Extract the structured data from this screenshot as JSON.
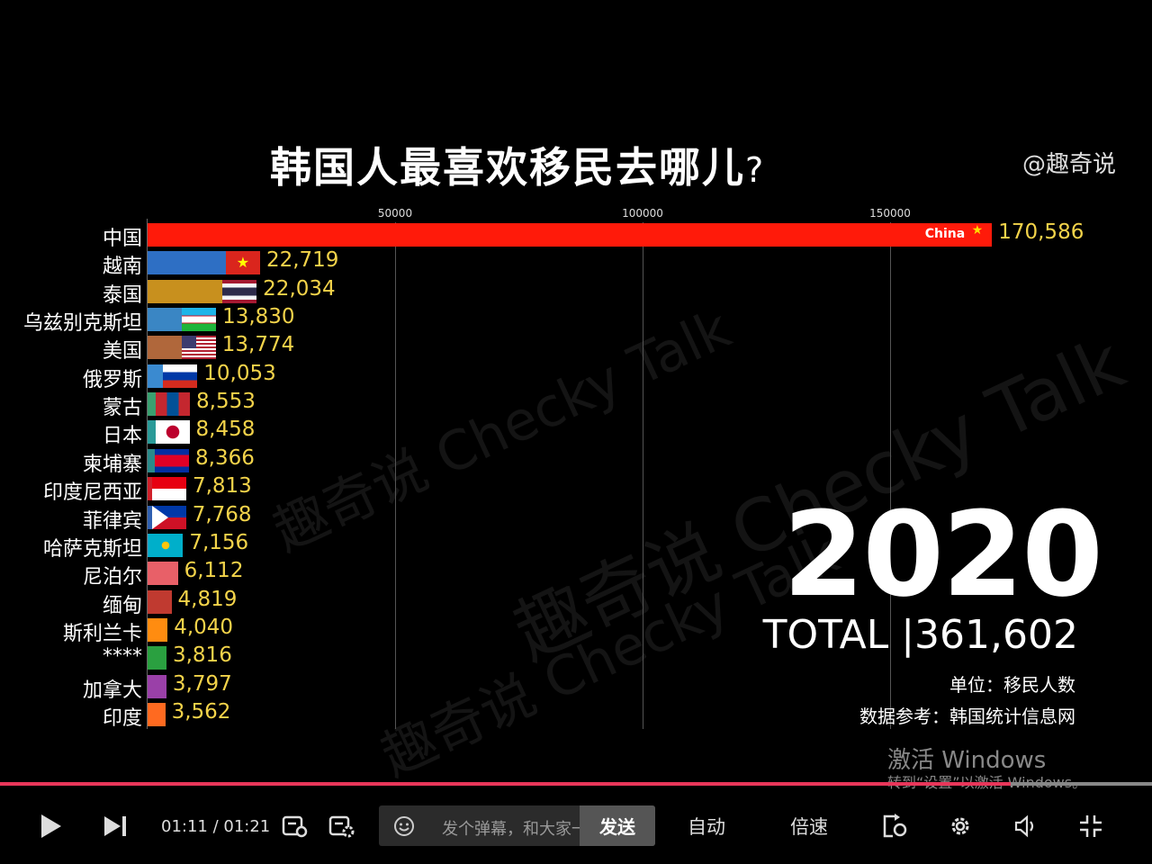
{
  "video": {
    "title": "韩国人最喜欢移民去哪儿",
    "title_mark": "?",
    "handle": "@趣奇说",
    "year": "2020",
    "total": "TOTAL |361,602",
    "unit": "单位：移民人数",
    "source": "数据参考：韩国统计信息网",
    "watermark": "趣奇说 Checky Talk",
    "china_inline": "China"
  },
  "chart_data": {
    "type": "bar",
    "orientation": "horizontal",
    "x_ticks": [
      50000,
      100000,
      150000
    ],
    "x_tick_labels": [
      "50000",
      "100000",
      "150000"
    ],
    "grid": true,
    "categories": [
      "中国",
      "越南",
      "泰国",
      "乌兹别克斯坦",
      "美国",
      "俄罗斯",
      "蒙古",
      "日本",
      "柬埔寨",
      "印度尼西亚",
      "菲律宾",
      "哈萨克斯坦",
      "尼泊尔",
      "缅甸",
      "斯利兰卡",
      "****",
      "加拿大",
      "印度"
    ],
    "values": [
      170586,
      22719,
      22034,
      13830,
      13774,
      10053,
      8553,
      8458,
      8366,
      7813,
      7768,
      7156,
      6112,
      4819,
      4040,
      3816,
      3797,
      3562
    ],
    "value_labels": [
      "170,586",
      "22,719",
      "22,034",
      "13,830",
      "13,774",
      "10,053",
      "8,553",
      "8,458",
      "8,366",
      "7,813",
      "7,768",
      "7,156",
      "6,112",
      "4,819",
      "4,040",
      "3,816",
      "3,797",
      "3,562"
    ],
    "colors": [
      "#ff1a0a",
      "#2e6fc4",
      "#c8901e",
      "#3a86c4",
      "#b0673b",
      "#3a8ad0",
      "#3aa070",
      "#2a9a98",
      "#2a8a8a",
      "#d0202a",
      "#3060b0",
      "#2aa0c8",
      "#e86068",
      "#c03a30",
      "#ff8c10",
      "#2aa040",
      "#9a40a8",
      "#ff6a20"
    ],
    "flags": [
      "china",
      "vietnam",
      "thailand",
      "uzbekistan",
      "usa",
      "russia",
      "mongolia",
      "japan",
      "cambodia",
      "indonesia",
      "philippines",
      "kazakhstan",
      "",
      "",
      "",
      "",
      "",
      ""
    ]
  },
  "windows": {
    "line1": "激活 Windows",
    "line2": "转到“设置”以激活 Windows。"
  },
  "player": {
    "progress": 0.877,
    "time": "01:11 / 01:21",
    "danmu_placeholder": "发个弹幕，和大家一起聊",
    "send": "发送",
    "auto": "自动",
    "speed": "倍速",
    "progress_color": "#e8365a"
  }
}
